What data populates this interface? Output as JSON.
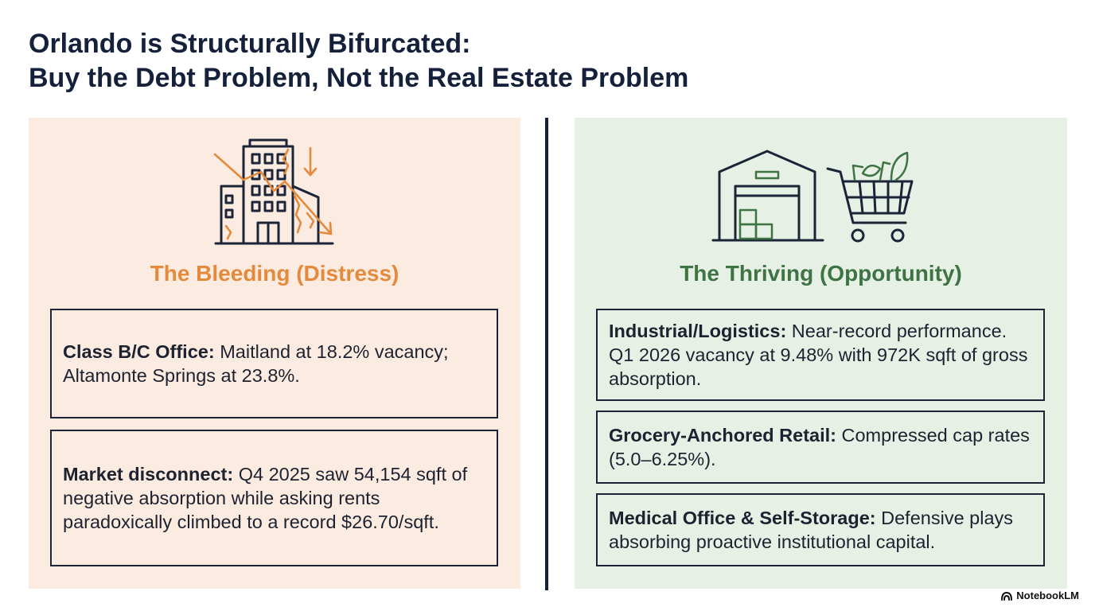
{
  "title": {
    "line1": "Orlando is Structurally Bifurcated:",
    "line2": "Buy the Debt Problem, Not the Real Estate Problem"
  },
  "left": {
    "heading": "The Bleeding (Distress)",
    "icon": "cracked-office-building-declining-arrow-icon",
    "accent_color": "#e38a3d",
    "background": "#fcebe0",
    "cards": [
      {
        "label": "Class B/C Office:",
        "text": " Maitland at 18.2% vacancy; Altamonte Springs at 23.8%."
      },
      {
        "label": "Market disconnect:",
        "text": " Q4 2025 saw 54,154 sqft of negative absorption while asking rents paradoxically climbed to a record $26.70/sqft."
      }
    ]
  },
  "right": {
    "heading": "The Thriving (Opportunity)",
    "icons": [
      "warehouse-icon",
      "grocery-cart-icon"
    ],
    "accent_color": "#3e7444",
    "background": "#e6f0e4",
    "cards": [
      {
        "label": "Industrial/Logistics:",
        "text": " Near-record performance. Q1 2026 vacancy at 9.48% with 972K sqft of gross absorption."
      },
      {
        "label": "Grocery-Anchored Retail:",
        "text": " Compressed cap rates (5.0–6.25%)."
      },
      {
        "label": "Medical Office & Self-Storage:",
        "text": " Defensive plays absorbing proactive institutional capital."
      }
    ]
  },
  "brand": {
    "name": "NotebookLM",
    "icon": "notebooklm-logo-icon"
  }
}
